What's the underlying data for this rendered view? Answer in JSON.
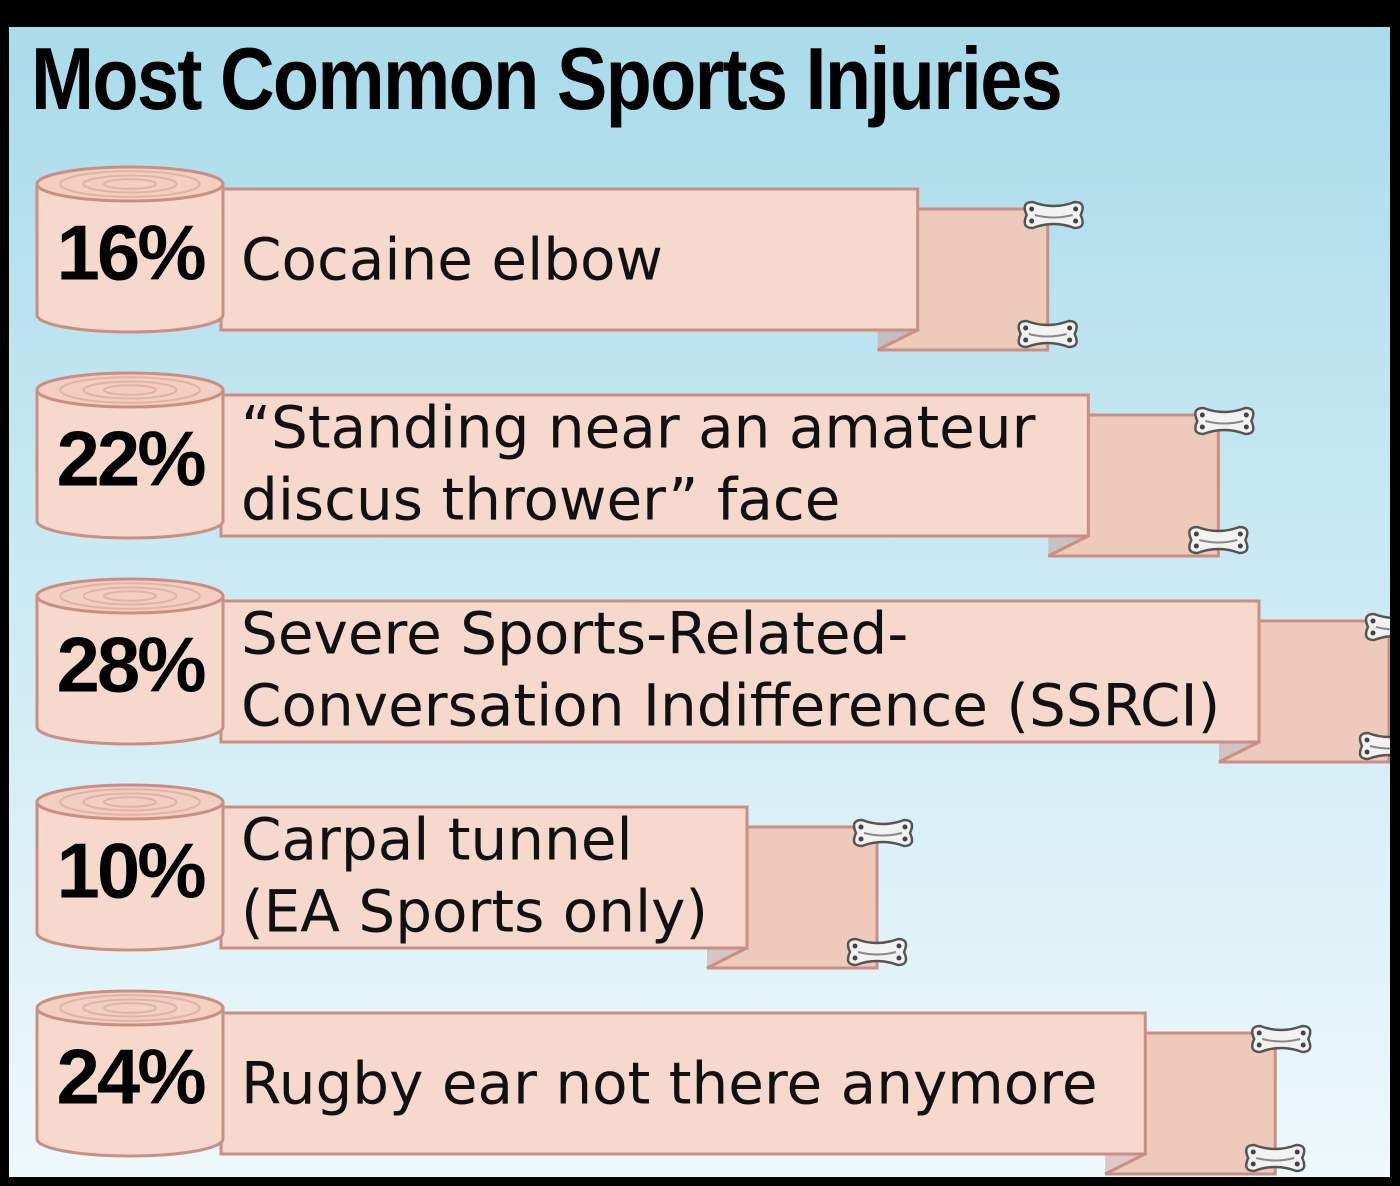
{
  "chart_data": {
    "type": "bar",
    "title": "Most Common Sports Injuries",
    "categories": [
      [
        "Cocaine elbow"
      ],
      [
        "“Standing near an amateur",
        "discus thrower” face"
      ],
      [
        "Severe Sports-Related-",
        "Conversation Indifference (SSRCI)"
      ],
      [
        "Carpal tunnel",
        "(EA Sports only)"
      ],
      [
        "Rugby ear not there anymore"
      ]
    ],
    "values": [
      16,
      22,
      28,
      10,
      24
    ],
    "value_labels": [
      "16%",
      "22%",
      "28%",
      "10%",
      "24%"
    ],
    "unit": "%",
    "orientation": "horizontal",
    "legend": "none",
    "grid": false
  },
  "colors": {
    "tape": "#f6d9cc",
    "tape_edge": "#c98f85",
    "tape_shadow": "#eecabb",
    "background_top": "#a9dbea",
    "background_bottom": "#eef8fb",
    "clip": "#f2f2f2",
    "text": "#000000"
  },
  "icons": {
    "roll": "bandage-roll-icon",
    "clip": "bandage-clip-icon"
  }
}
